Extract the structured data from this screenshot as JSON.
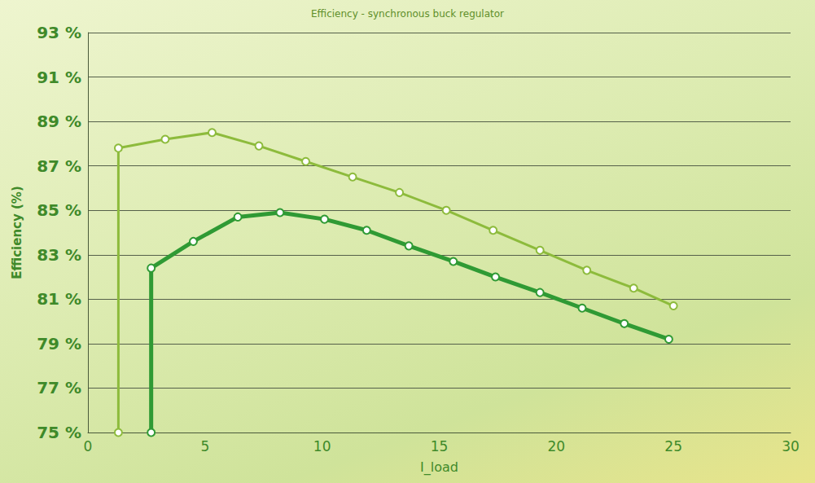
{
  "chart_data": {
    "type": "line",
    "title": "Efficiency - synchronous buck regulator",
    "x_label": "I_load",
    "y_label": "Efficiency (%)",
    "xlim": [
      0,
      30
    ],
    "xticks": [
      0,
      5,
      10,
      15,
      20,
      25,
      30
    ],
    "ylim": [
      75,
      93
    ],
    "yticks": [
      {
        "value": 75,
        "label": "75 %"
      },
      {
        "value": 77,
        "label": "77 %"
      },
      {
        "value": 79,
        "label": "79 %"
      },
      {
        "value": 81,
        "label": "81 %"
      },
      {
        "value": 83,
        "label": "83 %"
      },
      {
        "value": 85,
        "label": "85 %"
      },
      {
        "value": 87,
        "label": "87 %"
      },
      {
        "value": 89,
        "label": "89 %"
      },
      {
        "value": 91,
        "label": "91 %"
      },
      {
        "value": 93,
        "label": "93 %"
      }
    ],
    "grid": true,
    "marker": "circle",
    "series": [
      {
        "color": "#8dbb3c",
        "x": [
          1.3,
          1.3,
          3.3,
          5.3,
          7.3,
          9.3,
          11.3,
          13.3,
          15.3,
          17.3,
          19.3,
          21.3,
          23.3,
          25
        ],
        "values": [
          75,
          87.8,
          88.2,
          88.5,
          87.9,
          87.2,
          86.5,
          85.8,
          85.0,
          84.1,
          83.2,
          82.3,
          81.5,
          80.7
        ]
      },
      {
        "color": "#2f9a34",
        "x": [
          2.7,
          2.7,
          4.5,
          6.4,
          8.2,
          10.1,
          11.9,
          13.7,
          15.6,
          17.4,
          19.3,
          21.1,
          22.9,
          24.8
        ],
        "values": [
          75,
          82.4,
          83.6,
          84.7,
          84.9,
          84.6,
          84.1,
          83.4,
          82.7,
          82.0,
          81.3,
          80.6,
          79.9,
          79.2
        ]
      }
    ]
  }
}
